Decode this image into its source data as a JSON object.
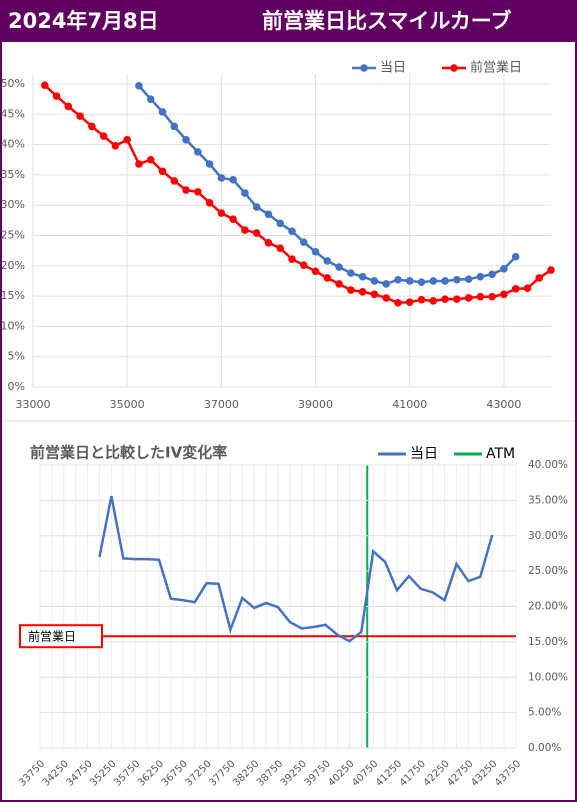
{
  "header": {
    "date": "2024年7月8日",
    "title": "前営業日比スマイルカーブ"
  },
  "chart_data": [
    {
      "type": "line",
      "markers": true,
      "grid": true,
      "legend": "top-right",
      "x": [
        33250,
        33500,
        33750,
        34000,
        34250,
        34500,
        34750,
        35000,
        35250,
        35500,
        35750,
        36000,
        36250,
        36500,
        36750,
        37000,
        37250,
        37500,
        37750,
        38000,
        38250,
        38500,
        38750,
        39000,
        39250,
        39500,
        39750,
        40000,
        40250,
        40500,
        40750,
        41000,
        41250,
        41500,
        41750,
        42000,
        42250,
        42500,
        42750,
        43000,
        43250,
        43500,
        43750,
        44000
      ],
      "xlim": [
        33000,
        44000
      ],
      "xticks": [
        33000,
        35000,
        37000,
        39000,
        41000,
        43000
      ],
      "ylim": [
        0,
        50
      ],
      "yticks": [
        {
          "value": 0,
          "label": "0%"
        },
        {
          "value": 5,
          "label": "5%"
        },
        {
          "value": 10,
          "label": "10%"
        },
        {
          "value": 15,
          "label": "15%"
        },
        {
          "value": 20,
          "label": "20%"
        },
        {
          "value": 25,
          "label": "25%"
        },
        {
          "value": 30,
          "label": "30%"
        },
        {
          "value": 35,
          "label": "35%"
        },
        {
          "value": 40,
          "label": "40%"
        },
        {
          "value": 45,
          "label": "45%"
        },
        {
          "value": 50,
          "label": "50%"
        }
      ],
      "series": [
        {
          "name": "当日",
          "color": "#4472c4",
          "values": [
            null,
            null,
            null,
            null,
            null,
            null,
            null,
            null,
            49.7,
            47.5,
            45.4,
            43,
            40.8,
            38.8,
            36.8,
            34.5,
            34.2,
            32,
            29.7,
            28.5,
            27,
            25.7,
            23.9,
            22.3,
            20.8,
            19.8,
            18.8,
            18.2,
            17.5,
            17,
            17.7,
            17.5,
            17.3,
            17.5,
            17.5,
            17.7,
            17.8,
            18.2,
            18.6,
            19.5,
            21.5,
            null,
            null,
            null
          ]
        },
        {
          "name": "前営業日",
          "color": "#ff0000",
          "values": [
            49.8,
            48,
            46.3,
            44.7,
            43,
            41.4,
            39.8,
            40.8,
            36.8,
            37.5,
            35.6,
            34,
            32.5,
            32.2,
            30.4,
            28.7,
            27.7,
            25.9,
            25.4,
            23.8,
            22.9,
            21.1,
            20.1,
            19.1,
            18,
            17,
            16,
            15.7,
            15.3,
            14.7,
            13.9,
            14,
            14.4,
            14.2,
            14.5,
            14.5,
            14.7,
            14.9,
            14.9,
            15.3,
            16.2,
            16.3,
            18,
            19.3
          ]
        }
      ]
    },
    {
      "type": "line",
      "markers": false,
      "grid": true,
      "legend": "top-right",
      "y_axis_side": "right",
      "title": "前営業日と比較したIV変化率",
      "categories": [
        "33750",
        null,
        "34250",
        null,
        "34750",
        null,
        "35250",
        null,
        "35750",
        null,
        "36250",
        null,
        "36750",
        null,
        "37250",
        null,
        "37750",
        null,
        "38250",
        null,
        "38750",
        null,
        "39250",
        null,
        "39750",
        null,
        "40250",
        null,
        "40750",
        null,
        "41250",
        null,
        "41750",
        null,
        "42250",
        null,
        "42750",
        null,
        "43250",
        null,
        "43750"
      ],
      "ylim": [
        0,
        40
      ],
      "yticks": [
        {
          "value": 0,
          "label": "0.00%"
        },
        {
          "value": 5,
          "label": "5.00%"
        },
        {
          "value": 10,
          "label": "10.00%"
        },
        {
          "value": 15,
          "label": "15.00%"
        },
        {
          "value": 20,
          "label": "20.00%"
        },
        {
          "value": 25,
          "label": "25.00%"
        },
        {
          "value": 30,
          "label": "30.00%"
        },
        {
          "value": 35,
          "label": "35.00%"
        },
        {
          "value": 40,
          "label": "40.00%"
        }
      ],
      "series": [
        {
          "name": "当日",
          "color": "#4472c4",
          "values": [
            null,
            null,
            null,
            null,
            null,
            27,
            35.6,
            26.8,
            26.7,
            26.7,
            26.6,
            21.1,
            20.9,
            20.6,
            23.3,
            23.2,
            16.7,
            21.2,
            19.8,
            20.5,
            19.9,
            17.8,
            16.9,
            17.1,
            17.4,
            16,
            15.1,
            16.4,
            27.8,
            26.3,
            22.3,
            24.3,
            22.5,
            22,
            20.9,
            26,
            23.6,
            24.2,
            30.1,
            null,
            null
          ]
        }
      ],
      "vline": {
        "name": "ATM",
        "color": "#00b050",
        "x": 40625
      },
      "hline": {
        "label": "前営業日",
        "color": "#ff0000",
        "value": 15.8
      }
    }
  ]
}
